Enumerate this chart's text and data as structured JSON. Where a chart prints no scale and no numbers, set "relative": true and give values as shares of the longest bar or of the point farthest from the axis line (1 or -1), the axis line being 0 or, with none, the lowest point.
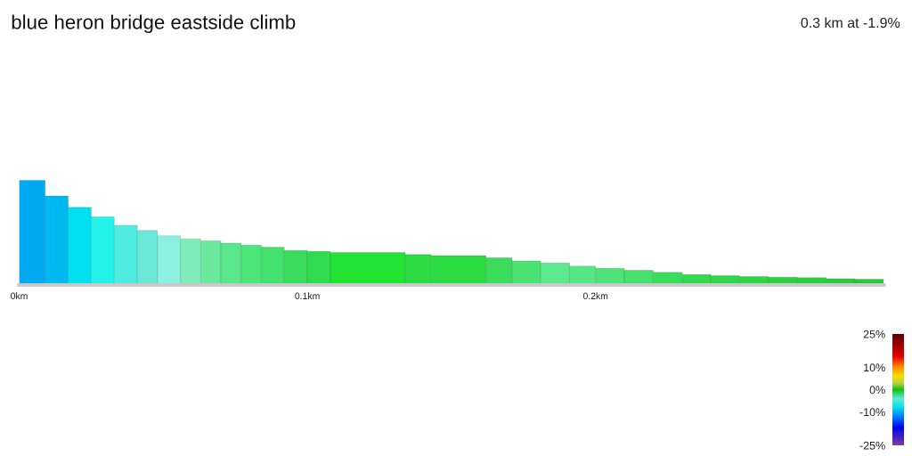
{
  "chart_data": {
    "type": "bar",
    "title": "blue heron bridge eastside climb",
    "subtitle": "0.3 km at -1.9%",
    "relative": true,
    "x": [
      0.0045,
      0.013,
      0.021,
      0.029,
      0.037,
      0.0445,
      0.052,
      0.0595,
      0.0665,
      0.0735,
      0.0805,
      0.088,
      0.096,
      0.104,
      0.121,
      0.1385,
      0.1525,
      0.1665,
      0.176,
      0.186,
      0.1955,
      0.205,
      0.215,
      0.225,
      0.235,
      0.245,
      0.255,
      0.265,
      0.275,
      0.285,
      0.295
    ],
    "values": [
      1,
      0.85,
      0.74,
      0.65,
      0.57,
      0.52,
      0.47,
      0.44,
      0.42,
      0.4,
      0.38,
      0.36,
      0.33,
      0.32,
      0.31,
      0.29,
      0.28,
      0.26,
      0.23,
      0.21,
      0.18,
      0.16,
      0.14,
      0.12,
      0.1,
      0.09,
      0.08,
      0.075,
      0.07,
      0.06,
      0.055
    ],
    "colors": [
      "#00aaf0",
      "#00b8f0",
      "#00e0f0",
      "#22f2ea",
      "#4eece0",
      "#6ce8d8",
      "#8cf0e0",
      "#80ecbc",
      "#6ae89e",
      "#5ae68a",
      "#4ae678",
      "#42e06c",
      "#3adc5e",
      "#2edc4e",
      "#22e234",
      "#2adc42",
      "#2adc42",
      "#3cdc5c",
      "#4ae270",
      "#5ce88c",
      "#56e684",
      "#4ee278",
      "#44e06a",
      "#3adc5c",
      "#34d850",
      "#30d64a",
      "#2cd444",
      "#2ad240",
      "#28d03e",
      "#26ce3a",
      "#24cc38"
    ],
    "xlim": [
      0,
      0.3
    ],
    "xticks": [
      {
        "value": 0,
        "label": "0km"
      },
      {
        "value": 0.1,
        "label": "0.1km"
      },
      {
        "value": 0.2,
        "label": "0.2km"
      }
    ],
    "clim": [
      -25,
      25
    ],
    "cticks": [
      {
        "value": 25,
        "label": "25%"
      },
      {
        "value": 10,
        "label": "10%"
      },
      {
        "value": 0,
        "label": "0%"
      },
      {
        "value": -10,
        "label": "-10%"
      },
      {
        "value": -25,
        "label": "-25%"
      }
    ]
  }
}
